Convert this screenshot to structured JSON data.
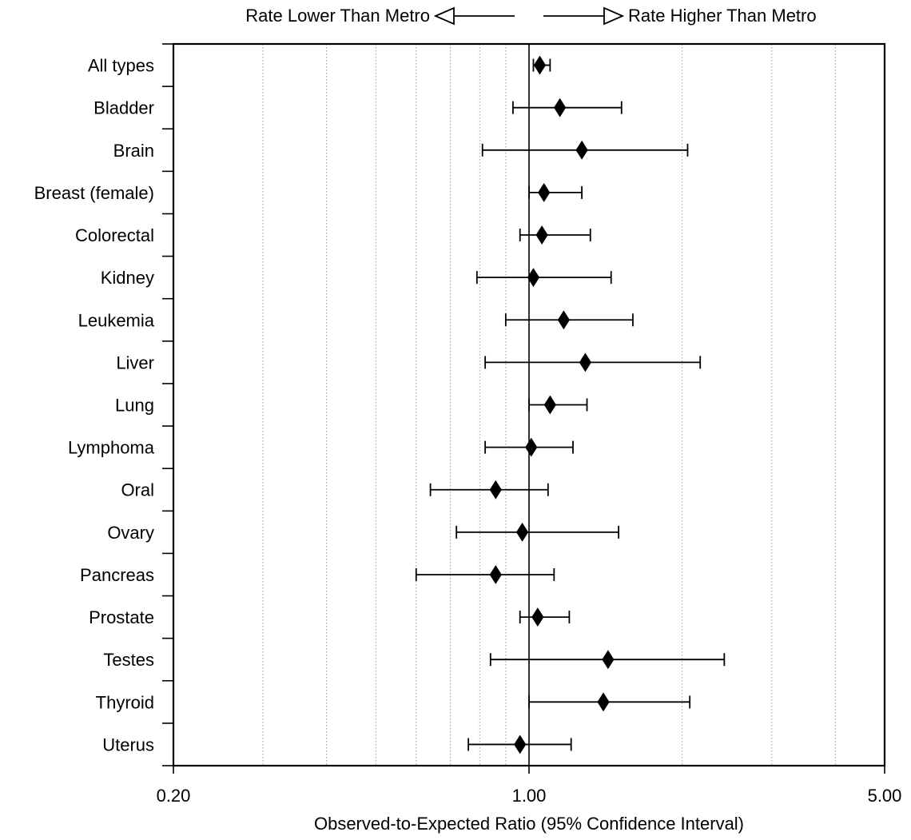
{
  "chart_data": {
    "type": "forest",
    "legend": {
      "left_text": "Rate Lower Than Metro",
      "right_text": "Rate Higher Than Metro"
    },
    "xlabel": "Observed-to-Expected Ratio (95% Confidence Interval)",
    "x_scale": "log",
    "xlim": [
      0.2,
      5.0
    ],
    "x_tick_labels": [
      "0.20",
      "1.00",
      "5.00"
    ],
    "x_ticks": [
      0.2,
      1.0,
      5.0
    ],
    "x_minor_gridlines": [
      0.3,
      0.4,
      0.5,
      0.6,
      0.7,
      0.8,
      0.9,
      2,
      3,
      4
    ],
    "reference_line": 1.0,
    "categories": [
      "All types",
      "Bladder",
      "Brain",
      "Breast (female)",
      "Colorectal",
      "Kidney",
      "Leukemia",
      "Liver",
      "Lung",
      "Lymphoma",
      "Oral",
      "Ovary",
      "Pancreas",
      "Prostate",
      "Testes",
      "Thyroid",
      "Uterus"
    ],
    "estimates": [
      1.05,
      1.15,
      1.27,
      1.07,
      1.06,
      1.02,
      1.17,
      1.29,
      1.1,
      1.01,
      0.86,
      0.97,
      0.86,
      1.04,
      1.43,
      1.4,
      0.96
    ],
    "ci_lower": [
      1.02,
      0.93,
      0.81,
      1.0,
      0.96,
      0.79,
      0.9,
      0.82,
      1.0,
      0.82,
      0.64,
      0.72,
      0.6,
      0.96,
      0.84,
      1.0,
      0.76
    ],
    "ci_upper": [
      1.1,
      1.52,
      2.05,
      1.27,
      1.32,
      1.45,
      1.6,
      2.17,
      1.3,
      1.22,
      1.09,
      1.5,
      1.12,
      1.2,
      2.42,
      2.07,
      1.21
    ]
  }
}
